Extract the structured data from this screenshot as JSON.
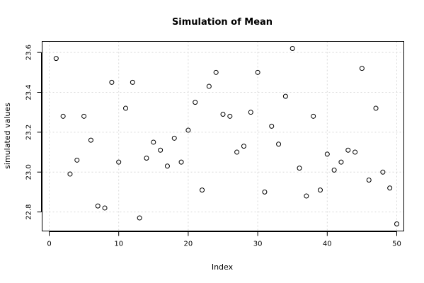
{
  "chart_data": {
    "type": "scatter",
    "title": "Simulation of Mean",
    "xlabel": "Index",
    "ylabel": "simulated values",
    "xlim": [
      0,
      50
    ],
    "ylim": [
      22.74,
      23.62
    ],
    "x_ticks": [
      0,
      10,
      20,
      30,
      40,
      50
    ],
    "y_ticks": [
      22.8,
      23.0,
      23.2,
      23.4,
      23.6
    ],
    "x_tick_labels": [
      "0",
      "10",
      "20",
      "30",
      "40",
      "50"
    ],
    "y_tick_labels": [
      "22.8",
      "23.0",
      "23.2",
      "23.4",
      "23.6"
    ],
    "grid": true,
    "marker": "open-circle",
    "x": [
      1,
      2,
      3,
      4,
      5,
      6,
      7,
      8,
      9,
      10,
      11,
      12,
      13,
      14,
      15,
      16,
      17,
      18,
      19,
      20,
      21,
      22,
      23,
      24,
      25,
      26,
      27,
      28,
      29,
      30,
      31,
      32,
      33,
      34,
      35,
      36,
      37,
      38,
      39,
      40,
      41,
      42,
      43,
      44,
      45,
      46,
      47,
      48,
      49,
      50
    ],
    "y": [
      23.57,
      23.28,
      22.99,
      23.06,
      23.28,
      23.16,
      22.83,
      22.82,
      23.45,
      23.05,
      23.32,
      23.45,
      22.77,
      23.07,
      23.15,
      23.11,
      23.03,
      23.17,
      23.05,
      23.21,
      23.35,
      22.91,
      23.43,
      23.5,
      23.29,
      23.28,
      23.1,
      23.13,
      23.3,
      23.5,
      22.9,
      23.23,
      23.14,
      23.38,
      23.62,
      23.02,
      22.88,
      23.28,
      22.91,
      23.09,
      23.01,
      23.05,
      23.11,
      23.1,
      23.52,
      22.96,
      23.32,
      23.0,
      22.92,
      22.74
    ]
  }
}
